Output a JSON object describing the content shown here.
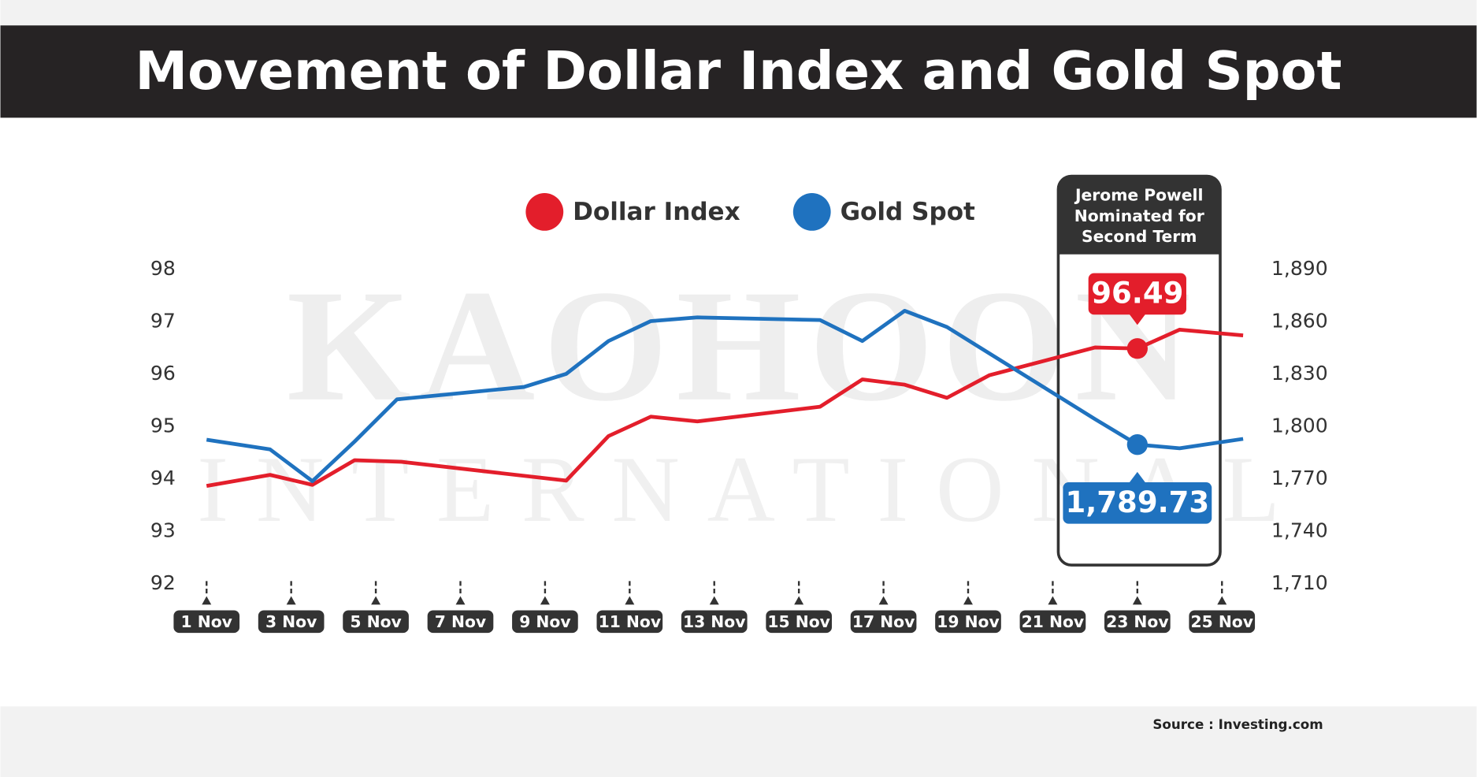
{
  "chart_data": {
    "type": "line",
    "title": "Movement of Dollar Index and Gold Spot",
    "watermark": [
      "KAOHOON",
      "INTERNATIONAL"
    ],
    "source": "Source : Investing.com",
    "annotation": [
      "Jerome Powell",
      "Nominated for",
      "Second Term"
    ],
    "xlim": [
      1,
      25.5
    ],
    "xticks": [
      {
        "value": 1,
        "label": "1 Nov"
      },
      {
        "value": 3,
        "label": "3 Nov"
      },
      {
        "value": 5,
        "label": "5 Nov"
      },
      {
        "value": 7,
        "label": "7 Nov"
      },
      {
        "value": 9,
        "label": "9 Nov"
      },
      {
        "value": 11,
        "label": "11 Nov"
      },
      {
        "value": 13,
        "label": "13 Nov"
      },
      {
        "value": 15,
        "label": "15 Nov"
      },
      {
        "value": 17,
        "label": "17 Nov"
      },
      {
        "value": 19,
        "label": "19 Nov"
      },
      {
        "value": 21,
        "label": "21 Nov"
      },
      {
        "value": 23,
        "label": "23 Nov"
      },
      {
        "value": 25,
        "label": "25 Nov"
      }
    ],
    "ylim": [
      92,
      98
    ],
    "yticks": [
      92,
      93,
      94,
      95,
      96,
      97,
      98
    ],
    "y2lim": [
      1710,
      1890
    ],
    "y2ticks": [
      {
        "value": 1710,
        "label": "1,710"
      },
      {
        "value": 1740,
        "label": "1,740"
      },
      {
        "value": 1770,
        "label": "1,770"
      },
      {
        "value": 1800,
        "label": "1,800"
      },
      {
        "value": 1830,
        "label": "1,830"
      },
      {
        "value": 1860,
        "label": "1,860"
      },
      {
        "value": 1890,
        "label": "1,890"
      }
    ],
    "series": [
      {
        "name": "Dollar Index",
        "color": "#e31e2b",
        "x": [
          1,
          2.5,
          3.5,
          4.5,
          5.6,
          9.5,
          10.5,
          11.5,
          12.6,
          15.5,
          16.5,
          17.5,
          18.5,
          19.5,
          22,
          23,
          24,
          25.5
        ],
        "values": [
          93.87,
          94.08,
          93.89,
          94.36,
          94.33,
          93.97,
          94.82,
          95.19,
          95.1,
          95.38,
          95.9,
          95.8,
          95.55,
          95.98,
          96.51,
          96.49,
          96.85,
          96.74
        ],
        "value_labels": [
          null,
          null,
          null,
          null,
          null,
          null,
          null,
          null,
          null,
          null,
          null,
          null,
          null,
          null,
          null,
          "96.49",
          null,
          null
        ]
      },
      {
        "name": "Gold Spot",
        "color": "#1f72bf",
        "axis": "y2",
        "x": [
          1,
          2.5,
          3.5,
          4.5,
          5.5,
          8.5,
          9.5,
          10.5,
          11.5,
          12.6,
          15.5,
          16.5,
          17.5,
          18.5,
          22,
          23,
          24,
          25.5
        ],
        "values": [
          1792.5,
          1787,
          1768.8,
          1791.5,
          1815.6,
          1822.7,
          1830.2,
          1849,
          1860.4,
          1862.5,
          1861,
          1849,
          1866.3,
          1857,
          1804.3,
          1789.73,
          1787.6,
          1793
        ],
        "value_labels": [
          null,
          null,
          null,
          null,
          null,
          null,
          null,
          null,
          null,
          null,
          null,
          null,
          null,
          null,
          null,
          "1,789.73",
          null,
          null
        ]
      }
    ]
  }
}
